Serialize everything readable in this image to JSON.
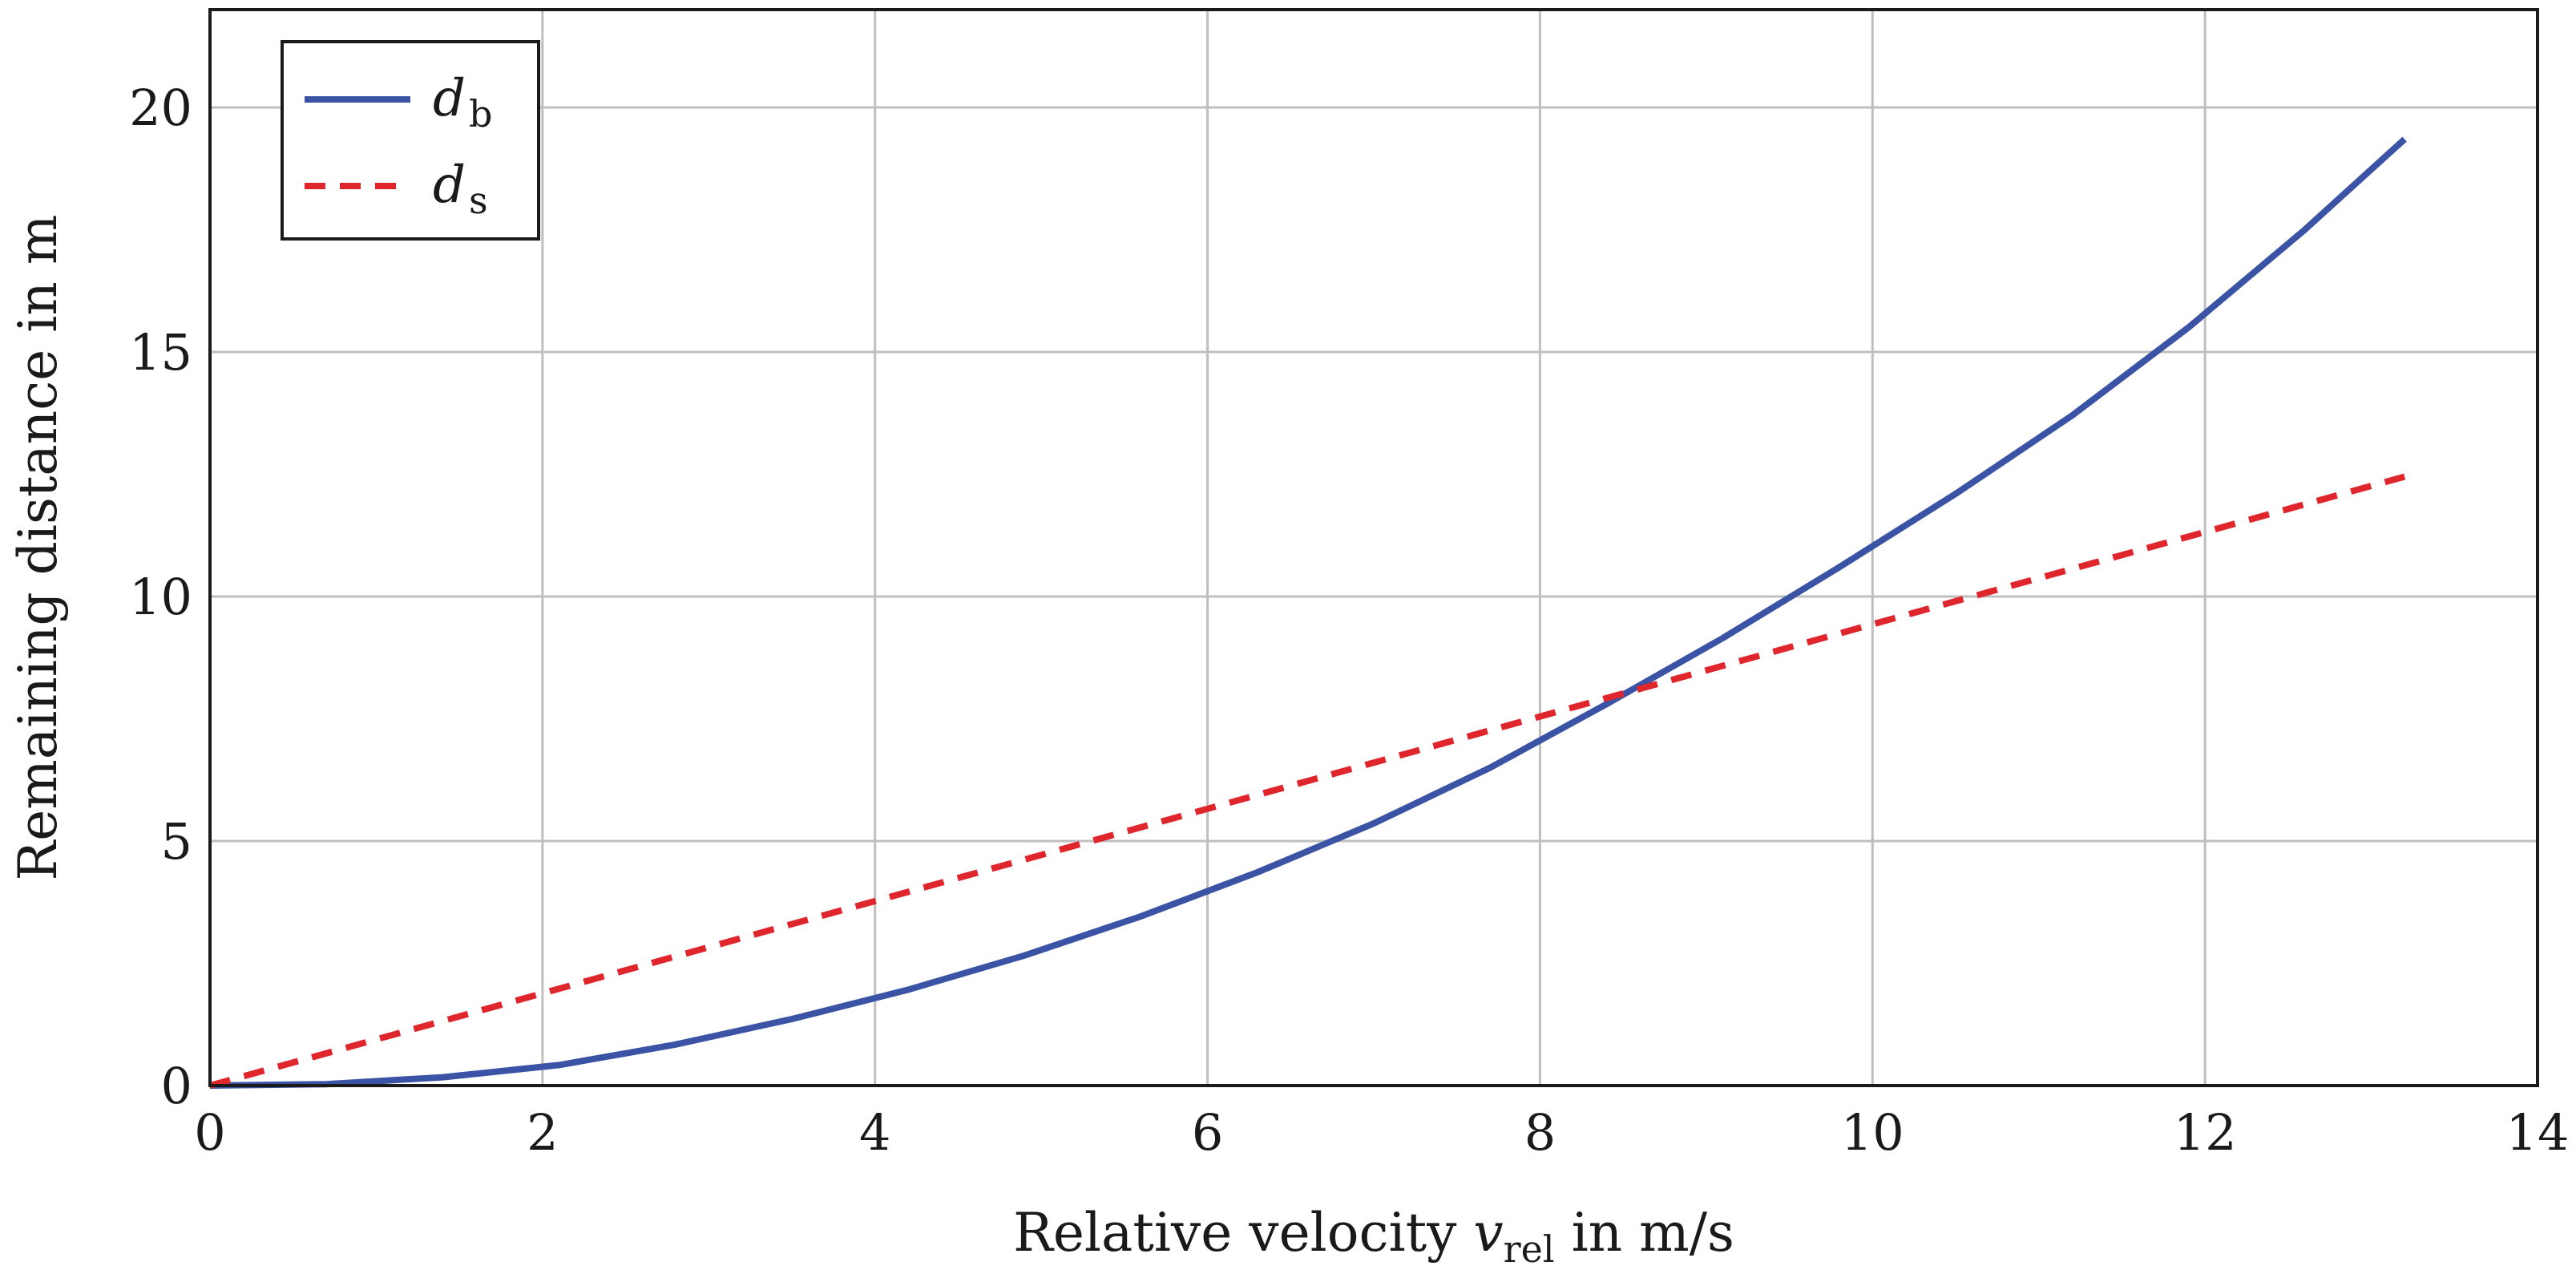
{
  "chart_data": {
    "type": "line",
    "title": "",
    "xlabel": "Relative velocity v_rel in m/s",
    "xlabel_parts": {
      "prefix": "Relative velocity ",
      "var": "v",
      "sub": "rel",
      "suffix": " in m/s"
    },
    "ylabel": "Remaining distance in m",
    "xlim": [
      0,
      14
    ],
    "ylim": [
      0,
      22
    ],
    "xticks": [
      0,
      2,
      4,
      6,
      8,
      10,
      12,
      14
    ],
    "xtick_labels": [
      "0",
      "2",
      "4",
      "6",
      "8",
      "10",
      "12",
      "14"
    ],
    "yticks": [
      0,
      5,
      10,
      15,
      20
    ],
    "ytick_labels": [
      "0",
      "5",
      "10",
      "15",
      "20"
    ],
    "grid": true,
    "legend_position": "top-left",
    "series": [
      {
        "name": "d_b",
        "label_var": "d",
        "label_sub": "b",
        "color": "#3a53a4",
        "dash": "solid",
        "x": [
          0,
          0.7,
          1.4,
          2.1,
          2.8,
          3.5,
          4.2,
          4.9,
          5.6,
          6.3,
          7.0,
          7.7,
          8.4,
          9.1,
          9.8,
          10.5,
          11.2,
          11.9,
          12.6,
          13.2
        ],
        "y": [
          0,
          0.03,
          0.17,
          0.42,
          0.84,
          1.36,
          1.96,
          2.66,
          3.46,
          4.36,
          5.36,
          6.5,
          7.8,
          9.15,
          10.6,
          12.1,
          13.7,
          15.5,
          17.5,
          19.35
        ]
      },
      {
        "name": "d_s",
        "label_var": "d",
        "label_sub": "s",
        "color": "#e0262d",
        "dash": "dashed",
        "x": [
          0,
          13.2
        ],
        "y": [
          0,
          12.45
        ]
      }
    ]
  }
}
